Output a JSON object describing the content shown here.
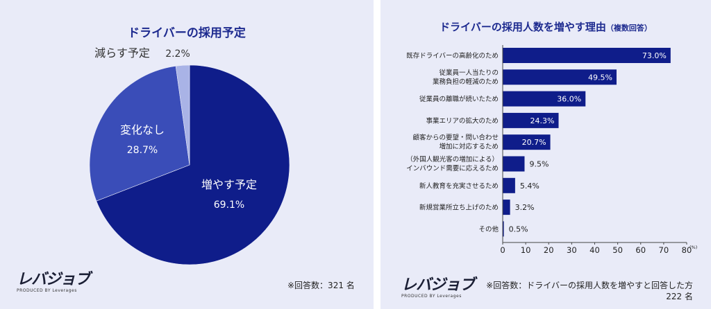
{
  "left": {
    "title": "ドライバーの採用予定",
    "note": "※回答数：321 名",
    "logo": {
      "mark": "レバジョブ",
      "sub": "PRODUCED BY Leverages"
    }
  },
  "right": {
    "title": "ドライバーの採用人数を増やす理由",
    "title_suffix": "（複数回答）",
    "note_line1": "※回答数：ドライバーの採用人数を増やすと回答した方",
    "note_line2": "222 名",
    "logo": {
      "mark": "レバジョブ",
      "sub": "PRODUCED BY Leverages"
    }
  },
  "chart_data": [
    {
      "type": "pie",
      "title": "ドライバーの採用予定",
      "slices": [
        {
          "label": "増やす予定",
          "value": 69.1,
          "display": "69.1%",
          "color": "#0f1d8a"
        },
        {
          "label": "変化なし",
          "value": 28.7,
          "display": "28.7%",
          "color": "#3a4db8"
        },
        {
          "label": "減らす予定",
          "value": 2.2,
          "display": "2.2%",
          "color": "#a9b3e6"
        }
      ]
    },
    {
      "type": "bar",
      "orientation": "horizontal",
      "title": "ドライバーの採用人数を増やす理由（複数回答）",
      "categories": [
        [
          "既存ドライバーの高齢化のため"
        ],
        [
          "従業員一人当たりの",
          "業務負担の軽減のため"
        ],
        [
          "従業員の離職が続いたため"
        ],
        [
          "事業エリアの拡大のため"
        ],
        [
          "顧客からの要望・問い合わせ",
          "増加に対応するため"
        ],
        [
          "（外国人観光客の増加による）",
          "インバウンド需要に応えるため"
        ],
        [
          "新人教育を充実させるため"
        ],
        [
          "新規営業所立ち上げのため"
        ],
        [
          "その他"
        ]
      ],
      "values": [
        73.0,
        49.5,
        36.0,
        24.3,
        20.7,
        9.5,
        5.4,
        3.2,
        0.5
      ],
      "value_labels": [
        "73.0%",
        "49.5%",
        "36.0%",
        "24.3%",
        "20.7%",
        "9.5%",
        "5.4%",
        "3.2%",
        "0.5%"
      ],
      "xlim": [
        0,
        80
      ],
      "xticks": [
        "0",
        "10",
        "20",
        "30",
        "40",
        "50",
        "60",
        "70",
        "80"
      ],
      "unit": "(%)",
      "bar_color": "#0f1d8a",
      "grid": false
    }
  ]
}
